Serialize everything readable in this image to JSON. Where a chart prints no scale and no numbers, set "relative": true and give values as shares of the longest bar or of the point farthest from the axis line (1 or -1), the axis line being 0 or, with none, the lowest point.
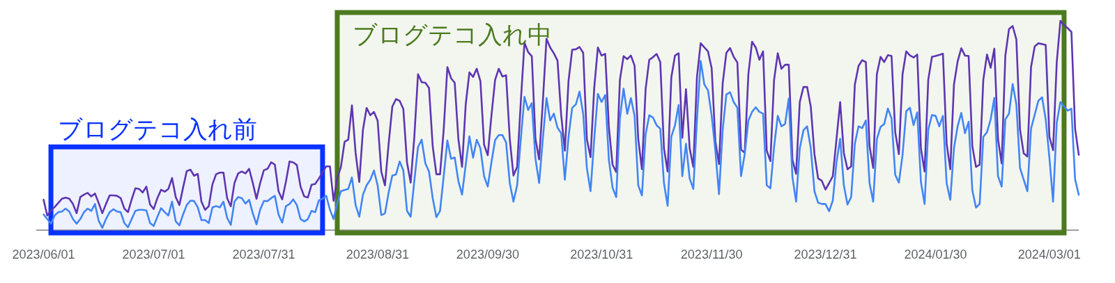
{
  "chart_data": {
    "type": "line",
    "relative": true,
    "xlim": [
      "2023-05-30",
      "2024-03-09"
    ],
    "xticks": [
      {
        "value": "2023-06-01",
        "label": "2023/06/01"
      },
      {
        "value": "2023-07-01",
        "label": "2023/07/01"
      },
      {
        "value": "2023-07-31",
        "label": "2023/07/31"
      },
      {
        "value": "2023-08-31",
        "label": "2023/08/31"
      },
      {
        "value": "2023-09-30",
        "label": "2023/09/30"
      },
      {
        "value": "2023-10-31",
        "label": "2023/10/31"
      },
      {
        "value": "2023-11-30",
        "label": "2023/11/30"
      },
      {
        "value": "2023-12-31",
        "label": "2023/12/31"
      },
      {
        "value": "2024-01-30",
        "label": "2024/01/30"
      },
      {
        "value": "2024-03-01",
        "label": "2024/03/01"
      }
    ],
    "x": [
      "2023-06-01",
      "2023-06-02",
      "2023-06-03",
      "2023-06-04",
      "2023-06-05",
      "2023-06-06",
      "2023-06-07",
      "2023-06-08",
      "2023-06-09",
      "2023-06-10",
      "2023-06-11",
      "2023-06-12",
      "2023-06-13",
      "2023-06-14",
      "2023-06-15",
      "2023-06-16",
      "2023-06-17",
      "2023-06-18",
      "2023-06-19",
      "2023-06-20",
      "2023-06-21",
      "2023-06-22",
      "2023-06-23",
      "2023-06-24",
      "2023-06-25",
      "2023-06-26",
      "2023-06-27",
      "2023-06-28",
      "2023-06-29",
      "2023-06-30",
      "2023-07-01",
      "2023-07-02",
      "2023-07-03",
      "2023-07-04",
      "2023-07-05",
      "2023-07-06",
      "2023-07-07",
      "2023-07-08",
      "2023-07-09",
      "2023-07-10",
      "2023-07-11",
      "2023-07-12",
      "2023-07-13",
      "2023-07-14",
      "2023-07-15",
      "2023-07-16",
      "2023-07-17",
      "2023-07-18",
      "2023-07-19",
      "2023-07-20",
      "2023-07-21",
      "2023-07-22",
      "2023-07-23",
      "2023-07-24",
      "2023-07-25",
      "2023-07-26",
      "2023-07-27",
      "2023-07-28",
      "2023-07-29",
      "2023-07-30",
      "2023-07-31",
      "2023-08-01",
      "2023-08-02",
      "2023-08-03",
      "2023-08-04",
      "2023-08-05",
      "2023-08-06",
      "2023-08-07",
      "2023-08-08",
      "2023-08-09",
      "2023-08-10",
      "2023-08-11",
      "2023-08-12",
      "2023-08-13",
      "2023-08-14",
      "2023-08-15",
      "2023-08-16",
      "2023-08-17",
      "2023-08-18",
      "2023-08-19",
      "2023-08-20",
      "2023-08-21",
      "2023-08-22",
      "2023-08-23",
      "2023-08-24",
      "2023-08-25",
      "2023-08-26",
      "2023-08-27",
      "2023-08-28",
      "2023-08-29",
      "2023-08-30",
      "2023-08-31",
      "2023-09-01",
      "2023-09-02",
      "2023-09-03",
      "2023-09-04",
      "2023-09-05",
      "2023-09-06",
      "2023-09-07",
      "2023-09-08",
      "2023-09-09",
      "2023-09-10",
      "2023-09-11",
      "2023-09-12",
      "2023-09-13",
      "2023-09-14",
      "2023-09-15",
      "2023-09-16",
      "2023-09-17",
      "2023-09-18",
      "2023-09-19",
      "2023-09-20",
      "2023-09-21",
      "2023-09-22",
      "2023-09-23",
      "2023-09-24",
      "2023-09-25",
      "2023-09-26",
      "2023-09-27",
      "2023-09-28",
      "2023-09-29",
      "2023-09-30",
      "2023-10-01",
      "2023-10-02",
      "2023-10-03",
      "2023-10-04",
      "2023-10-05",
      "2023-10-06",
      "2023-10-07",
      "2023-10-08",
      "2023-10-09",
      "2023-10-10",
      "2023-10-11",
      "2023-10-12",
      "2023-10-13",
      "2023-10-14",
      "2023-10-15",
      "2023-10-16",
      "2023-10-17",
      "2023-10-18",
      "2023-10-19",
      "2023-10-20",
      "2023-10-21",
      "2023-10-22",
      "2023-10-23",
      "2023-10-24",
      "2023-10-25",
      "2023-10-26",
      "2023-10-27",
      "2023-10-28",
      "2023-10-29",
      "2023-10-30",
      "2023-10-31",
      "2023-11-01",
      "2023-11-02",
      "2023-11-03",
      "2023-11-04",
      "2023-11-05",
      "2023-11-06",
      "2023-11-07",
      "2023-11-08",
      "2023-11-09",
      "2023-11-10",
      "2023-11-11",
      "2023-11-12",
      "2023-11-13",
      "2023-11-14",
      "2023-11-15",
      "2023-11-16",
      "2023-11-17",
      "2023-11-18",
      "2023-11-19",
      "2023-11-20",
      "2023-11-21",
      "2023-11-22",
      "2023-11-23",
      "2023-11-24",
      "2023-11-25",
      "2023-11-26",
      "2023-11-27",
      "2023-11-28",
      "2023-11-29",
      "2023-11-30",
      "2023-12-01",
      "2023-12-02",
      "2023-12-03",
      "2023-12-04",
      "2023-12-05",
      "2023-12-06",
      "2023-12-07",
      "2023-12-08",
      "2023-12-09",
      "2023-12-10",
      "2023-12-11",
      "2023-12-12",
      "2023-12-13",
      "2023-12-14",
      "2023-12-15",
      "2023-12-16",
      "2023-12-17",
      "2023-12-18",
      "2023-12-19",
      "2023-12-20",
      "2023-12-21",
      "2023-12-22",
      "2023-12-23",
      "2023-12-24",
      "2023-12-25",
      "2023-12-26",
      "2023-12-27",
      "2023-12-28",
      "2023-12-29",
      "2023-12-30",
      "2023-12-31",
      "2024-01-01",
      "2024-01-02",
      "2024-01-03",
      "2024-01-04",
      "2024-01-05",
      "2024-01-06",
      "2024-01-07",
      "2024-01-08",
      "2024-01-09",
      "2024-01-10",
      "2024-01-11",
      "2024-01-12",
      "2024-01-13",
      "2024-01-14",
      "2024-01-15",
      "2024-01-16",
      "2024-01-17",
      "2024-01-18",
      "2024-01-19",
      "2024-01-20",
      "2024-01-21",
      "2024-01-22",
      "2024-01-23",
      "2024-01-24",
      "2024-01-25",
      "2024-01-26",
      "2024-01-27",
      "2024-01-28",
      "2024-01-29",
      "2024-01-30",
      "2024-01-31",
      "2024-02-01",
      "2024-02-02",
      "2024-02-03",
      "2024-02-04",
      "2024-02-05",
      "2024-02-06",
      "2024-02-07",
      "2024-02-08",
      "2024-02-09",
      "2024-02-10",
      "2024-02-11",
      "2024-02-12",
      "2024-02-13",
      "2024-02-14",
      "2024-02-15",
      "2024-02-16",
      "2024-02-17",
      "2024-02-18",
      "2024-02-19",
      "2024-02-20",
      "2024-02-21",
      "2024-02-22",
      "2024-02-23",
      "2024-02-24",
      "2024-02-25",
      "2024-02-26",
      "2024-02-27",
      "2024-02-28",
      "2024-02-29",
      "2024-03-01",
      "2024-03-02",
      "2024-03-03",
      "2024-03-04",
      "2024-03-05",
      "2024-03-06",
      "2024-03-07",
      "2024-03-08",
      "2024-03-09"
    ],
    "series": [
      {
        "color": "#5e35b1",
        "values": [
          0.145,
          0.07,
          0.095,
          0.11,
          0.13,
          0.15,
          0.155,
          0.15,
          0.125,
          0.081,
          0.158,
          0.17,
          0.178,
          0.161,
          0.175,
          0.13,
          0.081,
          0.125,
          0.166,
          0.166,
          0.164,
          0.153,
          0.103,
          0.086,
          0.147,
          0.2,
          0.197,
          0.18,
          0.208,
          0.123,
          0.101,
          0.153,
          0.193,
          0.184,
          0.197,
          0.249,
          0.158,
          0.12,
          0.203,
          0.282,
          0.289,
          0.26,
          0.269,
          0.136,
          0.097,
          0.114,
          0.219,
          0.267,
          0.275,
          0.275,
          0.153,
          0.114,
          0.225,
          0.271,
          0.28,
          0.271,
          0.293,
          0.225,
          0.15,
          0.225,
          0.286,
          0.293,
          0.324,
          0.313,
          0.186,
          0.147,
          0.23,
          0.328,
          0.324,
          0.311,
          0.208,
          0.161,
          0.156,
          0.217,
          0.221,
          0.247,
          0.275,
          0.305,
          0.305,
          0.14,
          0.25,
          0.302,
          0.422,
          0.432,
          0.596,
          0.369,
          0.23,
          0.479,
          0.584,
          0.549,
          0.565,
          0.523,
          0.279,
          0.214,
          0.413,
          0.59,
          0.626,
          0.618,
          0.579,
          0.324,
          0.227,
          0.446,
          0.745,
          0.707,
          0.704,
          0.679,
          0.402,
          0.267,
          0.267,
          0.48,
          0.779,
          0.726,
          0.704,
          0.435,
          0.302,
          0.601,
          0.754,
          0.732,
          0.771,
          0.712,
          0.408,
          0.358,
          0.546,
          0.718,
          0.771,
          0.734,
          0.74,
          0.435,
          0.261,
          0.302,
          0.612,
          0.895,
          0.851,
          0.831,
          0.435,
          0.338,
          0.612,
          0.914,
          0.873,
          0.845,
          0.81,
          0.55,
          0.38,
          0.712,
          0.862,
          0.864,
          0.875,
          0.847,
          0.435,
          0.349,
          0.679,
          0.873,
          0.834,
          0.842,
          0.491,
          0.313,
          0.278,
          0.718,
          0.831,
          0.817,
          0.834,
          0.786,
          0.435,
          0.291,
          0.673,
          0.814,
          0.826,
          0.842,
          0.803,
          0.391,
          0.28,
          0.729,
          0.834,
          0.845,
          0.441,
          0.673,
          0.391,
          0.302,
          0.734,
          0.893,
          0.873,
          0.854,
          0.773,
          0.424,
          0.316,
          0.701,
          0.847,
          0.87,
          0.828,
          0.801,
          0.385,
          0.369,
          0.745,
          0.9,
          0.873,
          0.814,
          0.854,
          0.38,
          0.33,
          0.718,
          0.845,
          0.771,
          0.79,
          0.79,
          0.336,
          0.269,
          0.612,
          0.684,
          0.684,
          0.59,
          0.363,
          0.247,
          0.236,
          0.194,
          0.225,
          0.258,
          0.435,
          0.612,
          0.369,
          0.291,
          0.305,
          0.695,
          0.784,
          0.812,
          0.803,
          0.402,
          0.297,
          0.745,
          0.828,
          0.803,
          0.836,
          0.832,
          0.468,
          0.363,
          0.745,
          0.854,
          0.835,
          0.825,
          0.839,
          0.391,
          0.28,
          0.718,
          0.828,
          0.832,
          0.837,
          0.843,
          0.413,
          0.291,
          0.695,
          0.806,
          0.869,
          0.834,
          0.832,
          0.402,
          0.302,
          0.313,
          0.718,
          0.839,
          0.776,
          0.867,
          0.435,
          0.319,
          0.834,
          0.961,
          0.975,
          0.911,
          0.48,
          0.367,
          0.352,
          0.779,
          0.878,
          0.893,
          0.889,
          0.884,
          0.446,
          0.382,
          0.801,
          1,
          0.98,
          0.965,
          0.947,
          0.485,
          0.36
        ]
      },
      {
        "color": "#4285f4",
        "values": [
          0.075,
          0.053,
          0.031,
          0.07,
          0.086,
          0.089,
          0.103,
          0.089,
          0.053,
          0.031,
          0.053,
          0.086,
          0.103,
          0.092,
          0.125,
          0.045,
          0.011,
          0.053,
          0.086,
          0.1,
          0.089,
          0.086,
          0.034,
          0.014,
          0.053,
          0.092,
          0.097,
          0.097,
          0.094,
          0.034,
          0.02,
          0.064,
          0.105,
          0.086,
          0.07,
          0.136,
          0.042,
          0.023,
          0.075,
          0.12,
          0.141,
          0.139,
          0.109,
          0.048,
          0.048,
          0.034,
          0.109,
          0.115,
          0.109,
          0.136,
          0.059,
          0.025,
          0.136,
          0.158,
          0.153,
          0.127,
          0.145,
          0.08,
          0.028,
          0.098,
          0.139,
          0.139,
          0.153,
          0.164,
          0.075,
          0.036,
          0.114,
          0.125,
          0.147,
          0.12,
          0.053,
          0.042,
          0.053,
          0.092,
          0.086,
          0.142,
          0.15,
          0.164,
          0.098,
          0.053,
          0.13,
          0.186,
          0.192,
          0.197,
          0.252,
          0.12,
          0.064,
          0.169,
          0.214,
          0.241,
          0.285,
          0.214,
          0.072,
          0.08,
          0.18,
          0.261,
          0.266,
          0.328,
          0.286,
          0.092,
          0.064,
          0.236,
          0.397,
          0.432,
          0.319,
          0.28,
          0.153,
          0.062,
          0.092,
          0.258,
          0.428,
          0.341,
          0.347,
          0.234,
          0.17,
          0.313,
          0.448,
          0.346,
          0.432,
          0.391,
          0.258,
          0.208,
          0.324,
          0.43,
          0.454,
          0.454,
          0.419,
          0.225,
          0.136,
          0.214,
          0.435,
          0.637,
          0.574,
          0.607,
          0.341,
          0.225,
          0.435,
          0.631,
          0.524,
          0.557,
          0.49,
          0.463,
          0.241,
          0.445,
          0.584,
          0.601,
          0.662,
          0.556,
          0.297,
          0.186,
          0.435,
          0.651,
          0.612,
          0.646,
          0.336,
          0.203,
          0.158,
          0.534,
          0.676,
          0.556,
          0.631,
          0.546,
          0.214,
          0.166,
          0.457,
          0.549,
          0.538,
          0.501,
          0.485,
          0.225,
          0.116,
          0.446,
          0.501,
          0.598,
          0.258,
          0.413,
          0.247,
          0.197,
          0.529,
          0.809,
          0.696,
          0.668,
          0.546,
          0.38,
          0.172,
          0.48,
          0.648,
          0.659,
          0.612,
          0.585,
          0.258,
          0.363,
          0.524,
          0.565,
          0.587,
          0.565,
          0.557,
          0.214,
          0.2,
          0.397,
          0.546,
          0.496,
          0.507,
          0.629,
          0.253,
          0.136,
          0.391,
          0.477,
          0.496,
          0.391,
          0.186,
          0.131,
          0.125,
          0.125,
          0.09,
          0.142,
          0.325,
          0.437,
          0.214,
          0.122,
          0.158,
          0.413,
          0.496,
          0.487,
          0.524,
          0.225,
          0.136,
          0.435,
          0.493,
          0.507,
          0.581,
          0.535,
          0.264,
          0.227,
          0.36,
          0.568,
          0.585,
          0.502,
          0.563,
          0.23,
          0.125,
          0.48,
          0.55,
          0.546,
          0.496,
          0.546,
          0.225,
          0.145,
          0.391,
          0.496,
          0.56,
          0.463,
          0.518,
          0.192,
          0.108,
          0.125,
          0.446,
          0.468,
          0.529,
          0.632,
          0.258,
          0.208,
          0.529,
          0.557,
          0.698,
          0.601,
          0.297,
          0.241,
          0.186,
          0.485,
          0.552,
          0.618,
          0.635,
          0.529,
          0.347,
          0.136,
          0.513,
          0.612,
          0.59,
          0.571,
          0.58,
          0.243,
          0.169
        ]
      }
    ],
    "bands": [
      {
        "axis": "x",
        "from": "2023-06-03",
        "to": "2023-08-16",
        "label": "ブログテコ入れ前",
        "color": "#0a32ff"
      },
      {
        "axis": "x",
        "from": "2023-08-20",
        "to": "2024-03-05",
        "label": "ブログテコ入れ中",
        "color": "#4c7a1e"
      }
    ]
  }
}
